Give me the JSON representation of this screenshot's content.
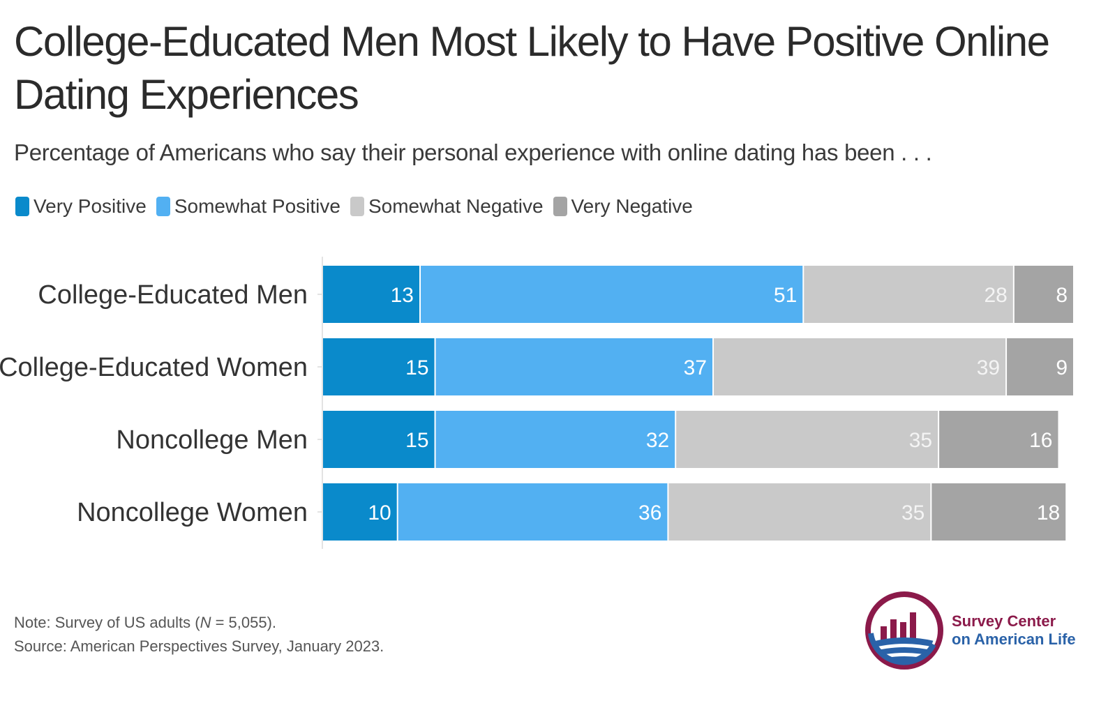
{
  "chart_data": {
    "type": "bar",
    "orientation": "horizontal",
    "stacked": true,
    "title": "College-Educated Men Most Likely to Have Positive Online Dating Experiences",
    "subtitle": "Percentage of Americans who say their personal experience with online dating has been . . .",
    "categories": [
      "College-Educated Men",
      "College-Educated Women",
      "Noncollege Men",
      "Noncollege Women"
    ],
    "series": [
      {
        "name": "Very Positive",
        "color": "#0a8acb",
        "label_color": "#ffffff",
        "values": [
          13,
          15,
          15,
          10
        ]
      },
      {
        "name": "Somewhat Positive",
        "color": "#52b0f2",
        "label_color": "#ffffff",
        "values": [
          51,
          37,
          32,
          36
        ]
      },
      {
        "name": "Somewhat Negative",
        "color": "#c9c9c9",
        "label_color": "#f4f4f4",
        "values": [
          28,
          39,
          35,
          35
        ]
      },
      {
        "name": "Very Negative",
        "color": "#a4a4a4",
        "label_color": "#ffffff",
        "values": [
          8,
          9,
          16,
          18
        ]
      }
    ],
    "xlim": [
      0,
      100
    ],
    "legend_position": "top-left",
    "grid": false
  },
  "footer": {
    "note_prefix": "Note: Survey of US adults (",
    "note_n": "N",
    "note_suffix": " = 5,055).",
    "source": "Source: American Perspectives Survey, January 2023."
  },
  "logo": {
    "line1": "Survey Center",
    "line2": "on American Life",
    "color_primary": "#8b1a4a",
    "color_secondary": "#2a62a8"
  }
}
